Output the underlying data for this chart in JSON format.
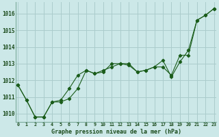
{
  "title": "Graphe pression niveau de la mer (hPa)",
  "background_color": "#cce8e8",
  "grid_color": "#aacccc",
  "line_color": "#1a5c1a",
  "x_labels": [
    "0",
    "1",
    "2",
    "3",
    "4",
    "5",
    "6",
    "7",
    "8",
    "9",
    "10",
    "11",
    "12",
    "13",
    "14",
    "15",
    "16",
    "17",
    "18",
    "19",
    "20",
    "21",
    "22",
    "23"
  ],
  "ylim": [
    1009.5,
    1016.7
  ],
  "yticks": [
    1010,
    1011,
    1012,
    1013,
    1014,
    1015,
    1016
  ],
  "series1": [
    1011.7,
    1010.8,
    1009.8,
    1009.8,
    1010.7,
    1010.8,
    1011.5,
    1012.3,
    1012.6,
    1012.4,
    1012.5,
    1013.0,
    1013.0,
    1013.0,
    1012.5,
    1012.6,
    1012.8,
    1013.2,
    1012.2,
    1013.1,
    1013.8,
    1015.6,
    1015.9,
    1016.3
  ],
  "series2": [
    1011.7,
    1010.8,
    1009.8,
    1009.8,
    1010.7,
    1010.7,
    1010.9,
    1011.5,
    1012.6,
    1012.4,
    1012.6,
    1012.8,
    1013.0,
    1012.9,
    1012.5,
    1012.6,
    1012.8,
    1012.8,
    1012.3,
    1013.5,
    1013.5,
    1015.6,
    1015.9,
    1016.3
  ]
}
